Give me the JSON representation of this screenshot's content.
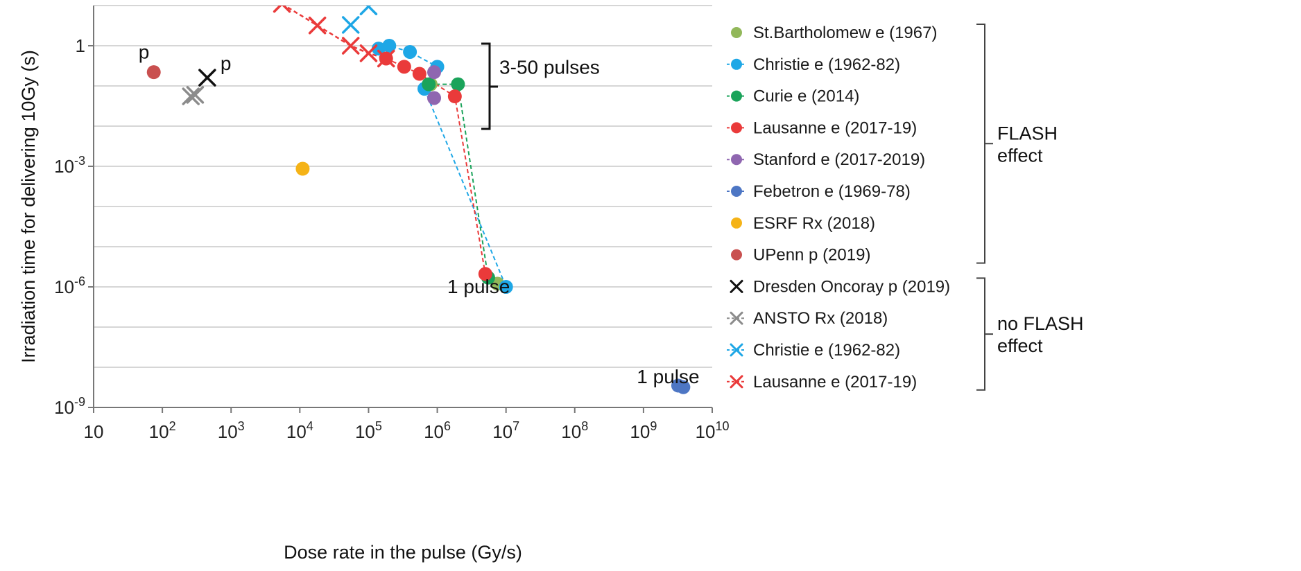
{
  "chart_data": {
    "type": "scatter",
    "xlabel": "Dose rate in the pulse (Gy/s)",
    "ylabel": "Irradiation time for delivering 10Gy (s)",
    "x_scale": "log",
    "y_scale": "log",
    "xlim": [
      10,
      10000000000
    ],
    "ylim": [
      1e-09,
      10
    ],
    "x_ticks": [
      {
        "value": 10,
        "base": "10",
        "exp": ""
      },
      {
        "value": 100,
        "base": "10",
        "exp": "2"
      },
      {
        "value": 1000,
        "base": "10",
        "exp": "3"
      },
      {
        "value": 10000,
        "base": "10",
        "exp": "4"
      },
      {
        "value": 100000,
        "base": "10",
        "exp": "5"
      },
      {
        "value": 1000000,
        "base": "10",
        "exp": "6"
      },
      {
        "value": 10000000,
        "base": "10",
        "exp": "7"
      },
      {
        "value": 100000000,
        "base": "10",
        "exp": "8"
      },
      {
        "value": 1000000000,
        "base": "10",
        "exp": "9"
      },
      {
        "value": 10000000000,
        "base": "10",
        "exp": "10"
      }
    ],
    "y_ticks": [
      {
        "value": 1,
        "base": "1",
        "exp": ""
      },
      {
        "value": 0.001,
        "base": "10",
        "exp": "-3"
      },
      {
        "value": 1e-06,
        "base": "10",
        "exp": "-6"
      },
      {
        "value": 1e-09,
        "base": "10",
        "exp": "-9"
      }
    ],
    "y_gridlines": [
      10,
      1,
      0.1,
      0.01,
      0.001,
      0.0001,
      1e-05,
      1e-06,
      1e-07,
      1e-08
    ],
    "grid": "horizontal",
    "legend_position": "right",
    "series": [
      {
        "name": "St.Bartholomew e (1967)",
        "color": "#92b85a",
        "marker": "circle",
        "line": false,
        "points": [
          [
            800000,
            0.11
          ],
          [
            7500000,
            1.2e-06
          ]
        ]
      },
      {
        "name": "Christie e (1962-82)",
        "color": "#1ea7e6",
        "marker": "circle",
        "line": true,
        "points": [
          [
            140000,
            0.85
          ],
          [
            200000,
            1.0
          ],
          [
            400000,
            0.7
          ],
          [
            1000000,
            0.3
          ],
          [
            650000,
            0.085
          ],
          [
            10000000,
            1e-06
          ]
        ]
      },
      {
        "name": "Curie e (2014)",
        "color": "#1aa35a",
        "marker": "circle",
        "line": true,
        "points": [
          [
            750000,
            0.11
          ],
          [
            2000000,
            0.11
          ],
          [
            5500000,
            1.7e-06
          ]
        ]
      },
      {
        "name": "Lausanne e (2017-19)",
        "color": "#ea3a3a",
        "marker": "circle",
        "line": true,
        "points": [
          [
            180000,
            0.48
          ],
          [
            330000,
            0.3
          ],
          [
            550000,
            0.2
          ],
          [
            1800000,
            0.055
          ],
          [
            5000000,
            2.1e-06
          ]
        ]
      },
      {
        "name": "Stanford e (2017-2019)",
        "color": "#8f66b0",
        "marker": "circle",
        "line": true,
        "points": [
          [
            900000,
            0.22
          ],
          [
            900000,
            0.05
          ]
        ]
      },
      {
        "name": "Febetron e (1969-78)",
        "color": "#4d76c4",
        "marker": "circle",
        "line": true,
        "points": [
          [
            3200000000,
            3.5e-09
          ],
          [
            3800000000,
            3.2e-09
          ]
        ]
      },
      {
        "name": "ESRF Rx (2018)",
        "color": "#f5b317",
        "marker": "circle",
        "line": false,
        "points": [
          [
            11000,
            0.00087
          ]
        ]
      },
      {
        "name": "UPenn p (2019)",
        "color": "#c9504f",
        "marker": "circle",
        "line": false,
        "points": [
          [
            75,
            0.22
          ]
        ]
      },
      {
        "name": "Dresden Oncoray p (2019)",
        "color": "#111111",
        "marker": "x",
        "line": false,
        "points": [
          [
            450,
            0.16
          ]
        ]
      },
      {
        "name": "ANSTO Rx (2018)",
        "color": "#8c8c8c",
        "marker": "x",
        "line": true,
        "points": [
          [
            260,
            0.055
          ],
          [
            300,
            0.06
          ]
        ]
      },
      {
        "name": "Christie e (1962-82)",
        "color": "#1ea7e6",
        "marker": "x",
        "line": true,
        "points": [
          [
            55000,
            3.3
          ],
          [
            100000,
            9.5
          ]
        ]
      },
      {
        "name": "Lausanne e (2017-19)",
        "color": "#ea3a3a",
        "marker": "x",
        "line": true,
        "points": [
          [
            5500,
            11
          ],
          [
            18000,
            3.2
          ],
          [
            55000,
            1.0
          ],
          [
            100000,
            0.65
          ],
          [
            180000,
            0.48
          ]
        ]
      }
    ],
    "annotations": [
      {
        "text": "p",
        "x": 45,
        "y": 0.48
      },
      {
        "text": "p",
        "x": 700,
        "y": 0.25
      },
      {
        "text": "3-50 pulses",
        "x": 8000000,
        "y": 0.2
      },
      {
        "text": "1 pulse",
        "x": 1400000,
        "y": 7e-07
      },
      {
        "text": "1 pulse",
        "x": 800000000,
        "y": 4e-09
      }
    ],
    "legend_groups": [
      {
        "label_lines": [
          "FLASH",
          "effect"
        ],
        "series_from": 0,
        "series_to": 7
      },
      {
        "label_lines": [
          "no FLASH",
          "effect"
        ],
        "series_from": 8,
        "series_to": 11
      }
    ],
    "bracket_label": "3-50 pulses"
  }
}
